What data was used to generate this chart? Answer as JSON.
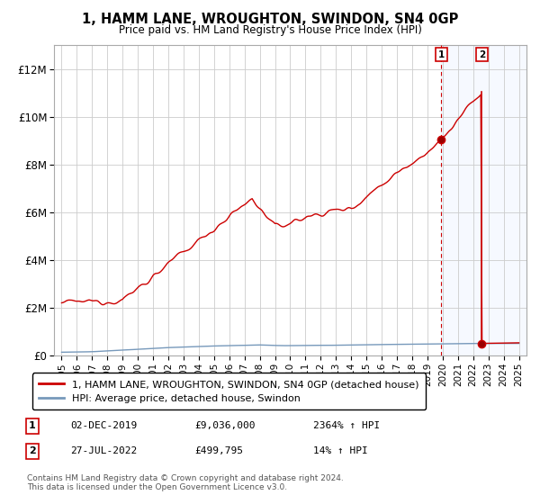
{
  "title": "1, HAMM LANE, WROUGHTON, SWINDON, SN4 0GP",
  "subtitle": "Price paid vs. HM Land Registry's House Price Index (HPI)",
  "legend_line1": "1, HAMM LANE, WROUGHTON, SWINDON, SN4 0GP (detached house)",
  "legend_line2": "HPI: Average price, detached house, Swindon",
  "marker1_date": "02-DEC-2019",
  "marker1_price": "£9,036,000",
  "marker1_hpi": "2364% ↑ HPI",
  "marker2_date": "27-JUL-2022",
  "marker2_price": "£499,795",
  "marker2_hpi": "14% ↑ HPI",
  "footer": "Contains HM Land Registry data © Crown copyright and database right 2024.\nThis data is licensed under the Open Government Licence v3.0.",
  "xlim": [
    1994.5,
    2025.5
  ],
  "ylim": [
    0,
    13000000
  ],
  "yticks": [
    0,
    2000000,
    4000000,
    6000000,
    8000000,
    10000000,
    12000000
  ],
  "ytick_labels": [
    "£0",
    "£2M",
    "£4M",
    "£6M",
    "£8M",
    "£10M",
    "£12M"
  ],
  "xticks": [
    1995,
    1996,
    1997,
    1998,
    1999,
    2000,
    2001,
    2002,
    2003,
    2004,
    2005,
    2006,
    2007,
    2008,
    2009,
    2010,
    2011,
    2012,
    2013,
    2014,
    2015,
    2016,
    2017,
    2018,
    2019,
    2020,
    2021,
    2022,
    2023,
    2024,
    2025
  ],
  "red_line_color": "#cc0000",
  "blue_line_color": "#7799bb",
  "marker1_x": 2019.92,
  "marker1_y": 9036000,
  "marker2_x": 2022.57,
  "marker2_y": 499795,
  "highlight_x1": 2019.92,
  "highlight_x2": 2025.5,
  "background_color": "#ffffff",
  "grid_color": "#cccccc"
}
